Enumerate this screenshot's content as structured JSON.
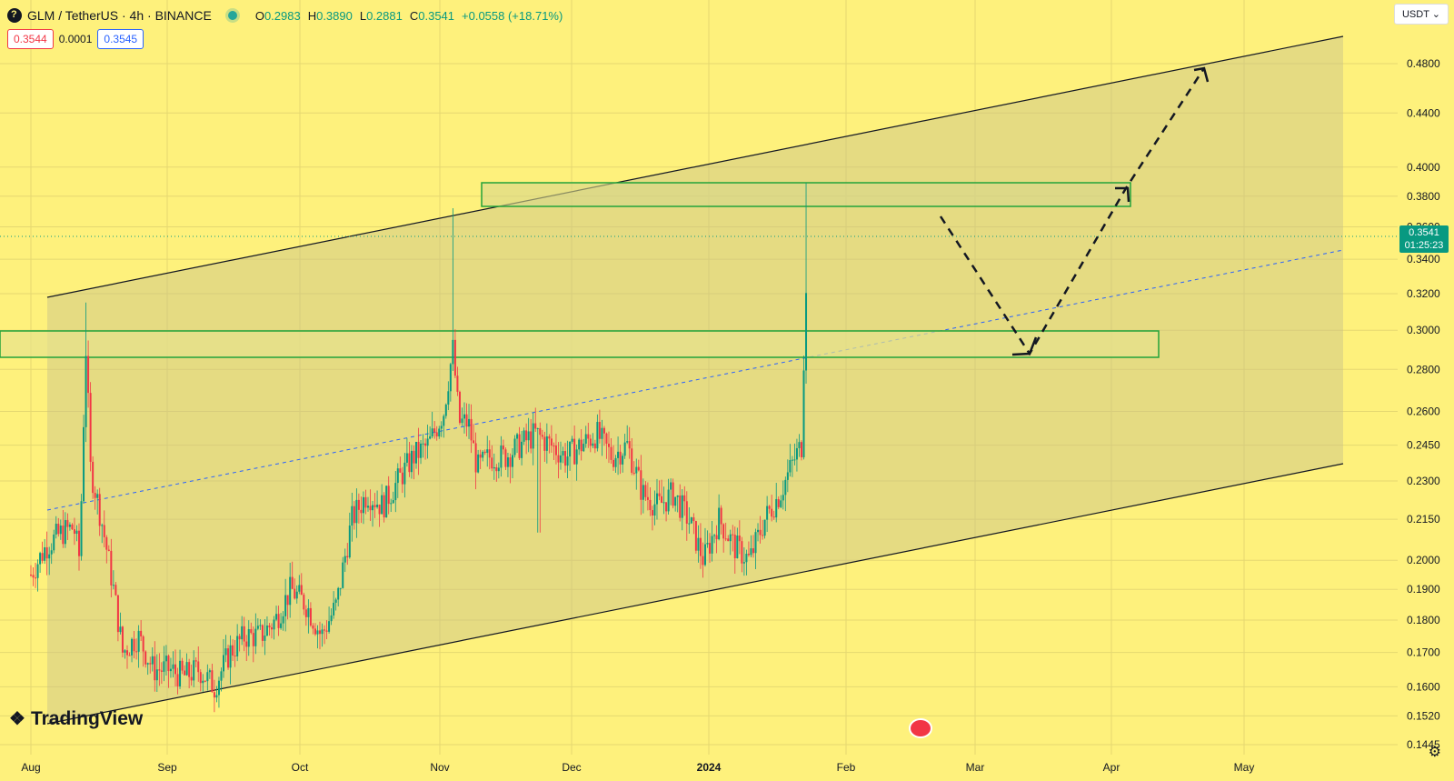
{
  "header": {
    "symbol": "GLM / TetherUS · 4h · BINANCE",
    "ohlc": [
      {
        "label": "O",
        "value": "0.2983"
      },
      {
        "label": "H",
        "value": "0.3890"
      },
      {
        "label": "L",
        "value": "0.2881"
      },
      {
        "label": "C",
        "value": "0.3541"
      }
    ],
    "change": "+0.0558 (+18.71%)"
  },
  "bidask": {
    "bid": "0.3544",
    "spread": "0.0001",
    "ask": "0.3545"
  },
  "currency": "USDT",
  "current_price": {
    "price": "0.3541",
    "countdown": "01:25:23"
  },
  "brand": "TradingView",
  "chart_data": {
    "type": "candlestick",
    "y_scale": "log",
    "ylim": [
      0.1445,
      0.48
    ],
    "y_ticks": [
      "0.4800",
      "0.4400",
      "0.4000",
      "0.3800",
      "0.3600",
      "0.3400",
      "0.3200",
      "0.3000",
      "0.2800",
      "0.2600",
      "0.2450",
      "0.2300",
      "0.2150",
      "0.2000",
      "0.1900",
      "0.1800",
      "0.1700",
      "0.1600",
      "0.1520",
      "0.1445"
    ],
    "x_ticks": [
      "Aug",
      "Sep",
      "Oct",
      "Nov",
      "Dec",
      "2024",
      "Feb",
      "Mar",
      "Apr",
      "May"
    ],
    "series_close_approx": [
      {
        "t": 0.0,
        "v": 0.195
      },
      {
        "t": 0.5,
        "v": 0.205
      },
      {
        "t": 1.0,
        "v": 0.21
      },
      {
        "t": 1.4,
        "v": 0.212
      },
      {
        "t": 1.6,
        "v": 0.2
      },
      {
        "t": 1.8,
        "v": 0.29
      },
      {
        "t": 1.95,
        "v": 0.235
      },
      {
        "t": 2.3,
        "v": 0.215
      },
      {
        "t": 2.7,
        "v": 0.19
      },
      {
        "t": 3.0,
        "v": 0.17
      },
      {
        "t": 3.5,
        "v": 0.175
      },
      {
        "t": 4.0,
        "v": 0.165
      },
      {
        "t": 4.5,
        "v": 0.165
      },
      {
        "t": 5.0,
        "v": 0.163
      },
      {
        "t": 5.5,
        "v": 0.165
      },
      {
        "t": 6.0,
        "v": 0.16
      },
      {
        "t": 6.5,
        "v": 0.17
      },
      {
        "t": 7.0,
        "v": 0.175
      },
      {
        "t": 7.5,
        "v": 0.175
      },
      {
        "t": 8.0,
        "v": 0.18
      },
      {
        "t": 8.5,
        "v": 0.19
      },
      {
        "t": 9.0,
        "v": 0.185
      },
      {
        "t": 9.5,
        "v": 0.175
      },
      {
        "t": 10.0,
        "v": 0.185
      },
      {
        "t": 10.5,
        "v": 0.215
      },
      {
        "t": 11.0,
        "v": 0.225
      },
      {
        "t": 11.5,
        "v": 0.22
      },
      {
        "t": 12.0,
        "v": 0.23
      },
      {
        "t": 12.5,
        "v": 0.24
      },
      {
        "t": 13.0,
        "v": 0.245
      },
      {
        "t": 13.5,
        "v": 0.26
      },
      {
        "t": 13.8,
        "v": 0.29
      },
      {
        "t": 14.0,
        "v": 0.255
      },
      {
        "t": 14.3,
        "v": 0.255
      },
      {
        "t": 14.6,
        "v": 0.235
      },
      {
        "t": 15.0,
        "v": 0.24
      },
      {
        "t": 15.5,
        "v": 0.24
      },
      {
        "t": 16.0,
        "v": 0.245
      },
      {
        "t": 16.5,
        "v": 0.25
      },
      {
        "t": 17.0,
        "v": 0.245
      },
      {
        "t": 17.5,
        "v": 0.24
      },
      {
        "t": 18.0,
        "v": 0.245
      },
      {
        "t": 18.5,
        "v": 0.25
      },
      {
        "t": 19.0,
        "v": 0.24
      },
      {
        "t": 19.5,
        "v": 0.245
      },
      {
        "t": 20.0,
        "v": 0.225
      },
      {
        "t": 20.5,
        "v": 0.22
      },
      {
        "t": 21.0,
        "v": 0.225
      },
      {
        "t": 21.5,
        "v": 0.215
      },
      {
        "t": 22.0,
        "v": 0.2
      },
      {
        "t": 22.5,
        "v": 0.215
      },
      {
        "t": 23.0,
        "v": 0.205
      },
      {
        "t": 23.5,
        "v": 0.2
      },
      {
        "t": 24.0,
        "v": 0.215
      },
      {
        "t": 24.5,
        "v": 0.225
      },
      {
        "t": 25.0,
        "v": 0.24
      },
      {
        "t": 25.2,
        "v": 0.245
      },
      {
        "t": 25.4,
        "v": 0.354
      }
    ],
    "annotations": {
      "channel": "ascending parallel channel",
      "zones": [
        {
          "label": "resistance zone",
          "from": 0.372,
          "to": 0.389
        },
        {
          "label": "support zone",
          "from": 0.285,
          "to": 0.3
        }
      ],
      "projection": "dashed path down to ~0.287 then up to ~0.479"
    }
  }
}
